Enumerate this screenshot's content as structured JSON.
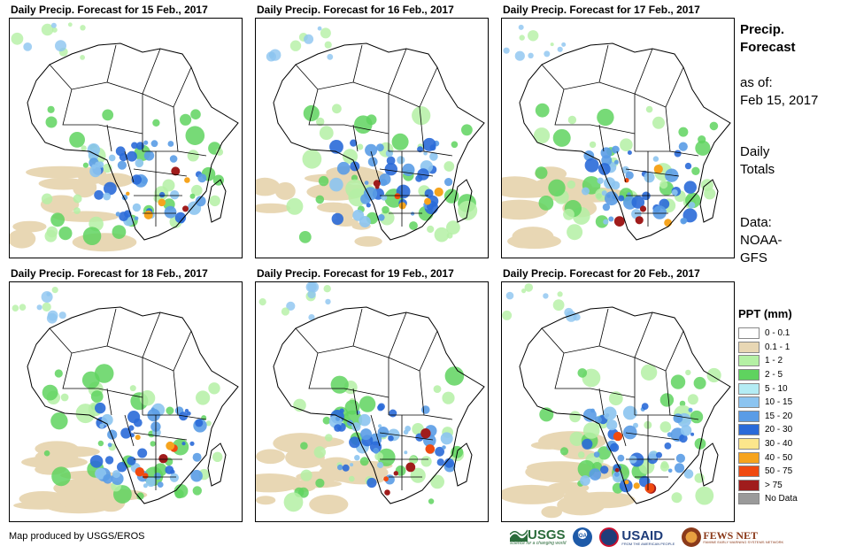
{
  "panels": [
    {
      "title": "Daily Precip. Forecast for 15 Feb., 2017"
    },
    {
      "title": "Daily Precip. Forecast for 16 Feb., 2017"
    },
    {
      "title": "Daily Precip. Forecast for 17 Feb., 2017"
    },
    {
      "title": "Daily Precip. Forecast for 18 Feb., 2017"
    },
    {
      "title": "Daily Precip. Forecast for 19 Feb., 2017"
    },
    {
      "title": "Daily Precip. Forecast for 20 Feb., 2017"
    }
  ],
  "sidebar": {
    "title_line1": "Precip.",
    "title_line2": "Forecast",
    "asof_label": "as of:",
    "asof_date": "Feb 15, 2017",
    "totals_line1": "Daily",
    "totals_line2": "Totals",
    "data_line1": "Data:",
    "data_line2": "NOAA-",
    "data_line3": "GFS"
  },
  "legend": {
    "title": "PPT (mm)",
    "items": [
      {
        "label": "0 - 0.1",
        "color": "#ffffff"
      },
      {
        "label": "0.1 - 1",
        "color": "#e8d7b4"
      },
      {
        "label": "1 - 2",
        "color": "#b4f0a4"
      },
      {
        "label": "2 - 5",
        "color": "#5fd35f"
      },
      {
        "label": "5 - 10",
        "color": "#b4ecf4"
      },
      {
        "label": "10 - 15",
        "color": "#8cc4f0"
      },
      {
        "label": "15 - 20",
        "color": "#5a9ce6"
      },
      {
        "label": "20 - 30",
        "color": "#2a6ad8"
      },
      {
        "label": "30 - 40",
        "color": "#fce68c"
      },
      {
        "label": "40 - 50",
        "color": "#f6a41e"
      },
      {
        "label": "50 - 75",
        "color": "#f04a10"
      },
      {
        "label": "> 75",
        "color": "#a01c1c"
      },
      {
        "label": "No Data",
        "color": "#9a9a9a"
      }
    ]
  },
  "footer": {
    "credit": "Map produced by USGS/EROS"
  },
  "logos": {
    "usgs": "USGS",
    "usgs_tagline": "science for a changing world",
    "noaa": "NOAA",
    "usaid": "USAID",
    "usaid_tagline": "FROM THE AMERICAN PEOPLE",
    "fews": "FEWS NET",
    "fews_tagline": "FAMINE EARLY WARNING SYSTEMS NETWORK"
  }
}
